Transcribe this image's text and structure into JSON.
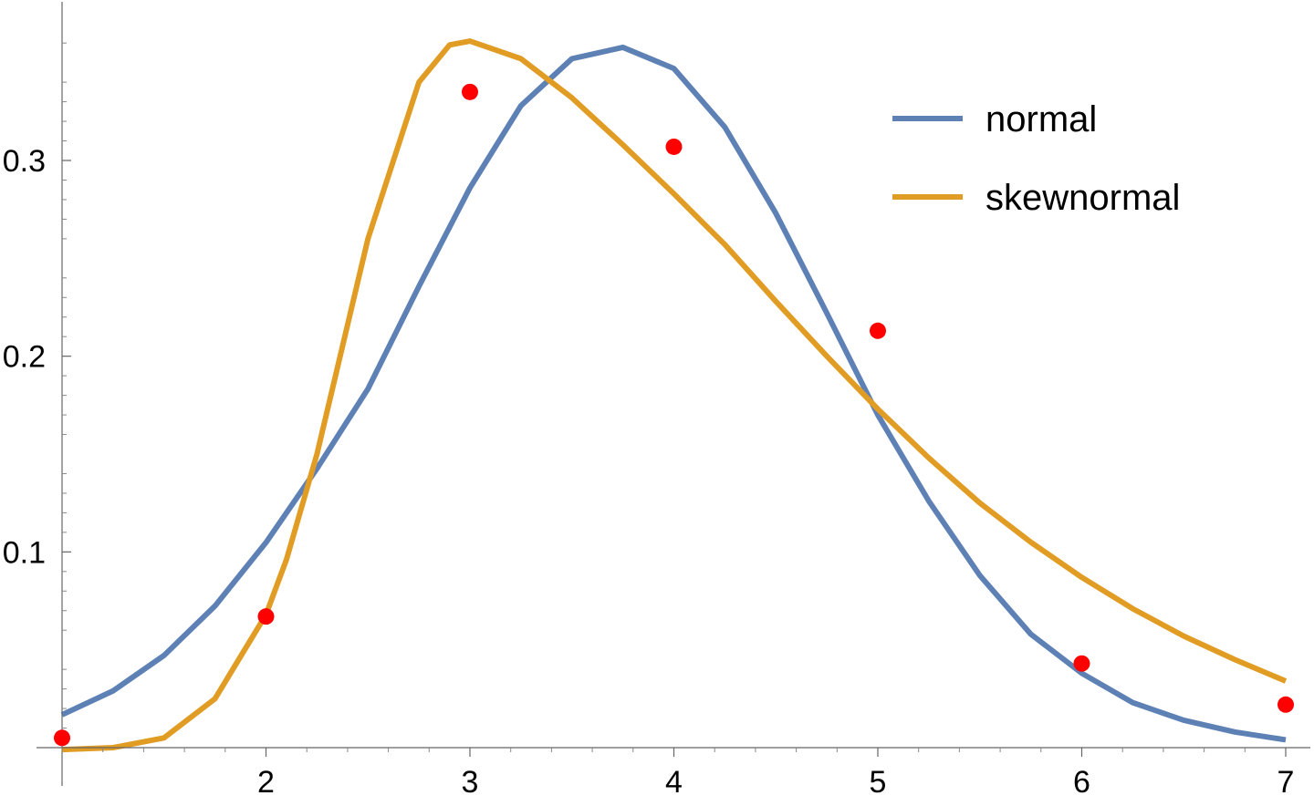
{
  "chart_data": {
    "type": "line",
    "xlim": [
      1,
      7.1
    ],
    "ylim": [
      0,
      0.37
    ],
    "x_ticks": [
      2,
      3,
      4,
      5,
      6,
      7
    ],
    "y_ticks": [
      0.1,
      0.2,
      0.3
    ],
    "x_tick_labels": [
      "2",
      "3",
      "4",
      "5",
      "6",
      "7"
    ],
    "y_tick_labels": [
      "0.1",
      "0.2",
      "0.3"
    ],
    "grid": false,
    "legend_placement": "top-right",
    "series": [
      {
        "name": "normal",
        "kind": "line",
        "color": "#5e81b5",
        "x": [
          1.0,
          1.25,
          1.5,
          1.75,
          2.0,
          2.25,
          2.5,
          2.75,
          3.0,
          3.25,
          3.5,
          3.75,
          4.0,
          4.25,
          4.5,
          4.75,
          5.0,
          5.25,
          5.5,
          5.75,
          6.0,
          6.25,
          6.5,
          6.75,
          7.0
        ],
        "y": [
          0.0168,
          0.029,
          0.0471,
          0.0724,
          0.1048,
          0.1426,
          0.1833,
          0.2357,
          0.286,
          0.328,
          0.352,
          0.3578,
          0.347,
          0.317,
          0.273,
          0.222,
          0.17,
          0.126,
          0.088,
          0.058,
          0.038,
          0.023,
          0.014,
          0.008,
          0.004
        ]
      },
      {
        "name": "skewnormal",
        "kind": "line",
        "color": "#e19c24",
        "x": [
          1.0,
          1.25,
          1.5,
          1.75,
          2.0,
          2.1,
          2.25,
          2.5,
          2.75,
          2.9,
          3.0,
          3.25,
          3.5,
          3.75,
          4.0,
          4.25,
          4.5,
          4.75,
          5.0,
          5.25,
          5.5,
          5.75,
          6.0,
          6.25,
          6.5,
          6.75,
          7.0
        ],
        "y": [
          -0.001,
          0.0,
          0.005,
          0.025,
          0.068,
          0.096,
          0.15,
          0.26,
          0.34,
          0.359,
          0.361,
          0.352,
          0.332,
          0.308,
          0.283,
          0.257,
          0.228,
          0.2,
          0.173,
          0.148,
          0.125,
          0.105,
          0.087,
          0.071,
          0.057,
          0.045,
          0.034
        ]
      },
      {
        "kind": "scatter",
        "color": "#ff0000",
        "x": [
          1,
          2,
          3,
          4,
          5,
          6,
          7
        ],
        "y": [
          0.005,
          0.067,
          0.335,
          0.307,
          0.213,
          0.043,
          0.022
        ]
      }
    ]
  }
}
